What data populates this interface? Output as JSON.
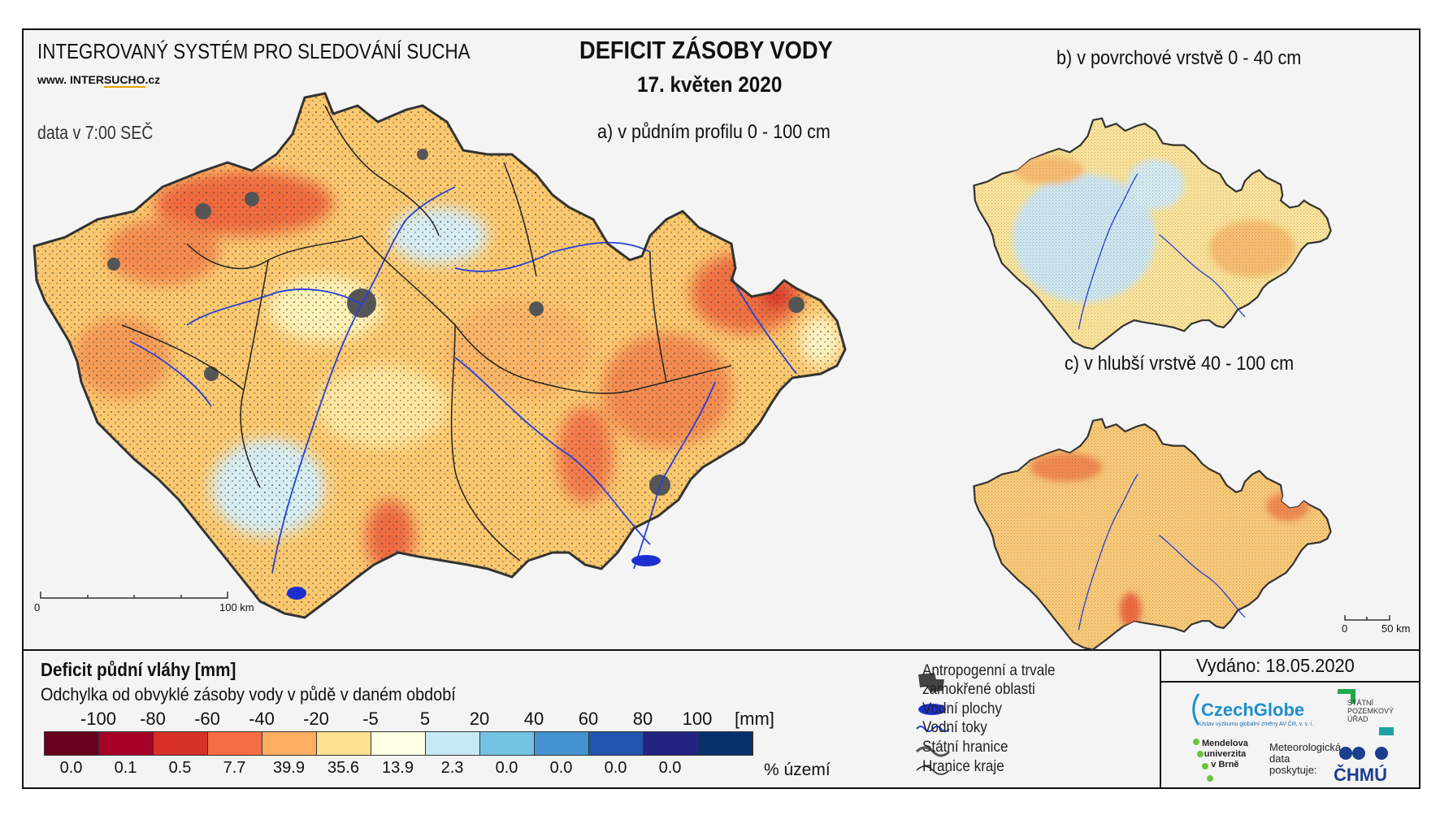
{
  "header": {
    "system_name": "INTEGROVANÝ SYSTÉM PRO SLEDOVÁNÍ SUCHA",
    "web_prefix": "www. ",
    "web_brand_a": "INTER",
    "web_brand_b": "SUCHO",
    "web_suffix": ".cz",
    "data_time": "data v 7:00 SEČ",
    "title": "DEFICIT ZÁSOBY VODY",
    "date": "17. květen 2020"
  },
  "maps": {
    "a_label": "a) v půdním profilu 0 - 100 cm",
    "b_label": "b) v povrchové vrstvě 0 - 40 cm",
    "c_label": "c) v hlubší vrstvě 40 - 100 cm",
    "scale_main_start": "0",
    "scale_main_end": "100 km",
    "scale_small_start": "0",
    "scale_small_end": "50 km"
  },
  "legend": {
    "title": "Deficit půdní vláhy  [mm]",
    "subtitle": "Odchylka od obvyklé zásoby vody v půdě v daném období",
    "ticks": [
      "-100",
      "-80",
      "-60",
      "-40",
      "-20",
      "-5",
      "5",
      "20",
      "40",
      "60",
      "80",
      "100"
    ],
    "units": "[mm]",
    "colors": [
      "#67001f",
      "#a50026",
      "#d73027",
      "#f46d43",
      "#fdae61",
      "#fee090",
      "#ffffe5",
      "#c6e9f5",
      "#74c3e3",
      "#4393d0",
      "#2155b0",
      "#22237f",
      "#08306b"
    ],
    "percentages": [
      "0.0",
      "0.1",
      "0.5",
      "7.7",
      "39.9",
      "35.6",
      "13.9",
      "2.3",
      "0.0",
      "0.0",
      "0.0",
      "0.0"
    ],
    "percent_label": "% území"
  },
  "symbols": {
    "anthropogenic_1": "Antropogenní a trvale",
    "anthropogenic_2": "zamokřené oblasti",
    "water_bodies": "Vodní plochy",
    "streams": "Vodní toky",
    "state_border": "Státní hranice",
    "region_border": "Hranice kraje"
  },
  "footer": {
    "issued": "Vydáno: 18.05.2020",
    "czechglobe": "CzechGlobe",
    "czechglobe_sub": "Ústav výzkumu globální změny AV ČR, v. v. i.",
    "spu_1": "STÁTNÍ",
    "spu_2": "POZEMKOVÝ",
    "spu_3": "ÚŘAD",
    "mendel_1": "Mendelova",
    "mendel_2": "univerzita",
    "mendel_3": "v Brně",
    "met_1": "Meteorologická",
    "met_2": "data",
    "met_3": "poskytuje:",
    "chmu": "ČHMÚ"
  }
}
